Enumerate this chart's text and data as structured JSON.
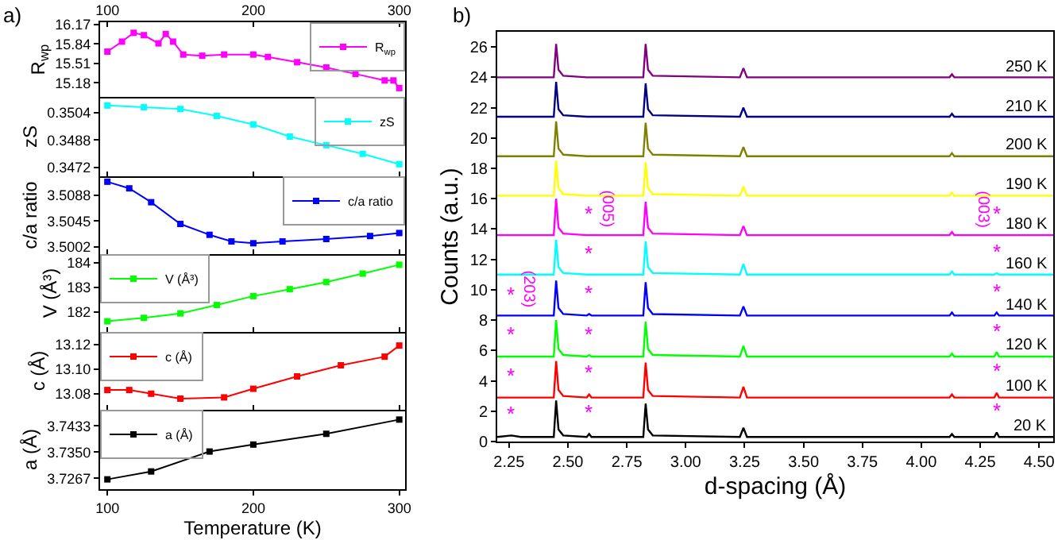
{
  "chart_data": [
    {
      "type": "line",
      "annotations": [
        "a)"
      ],
      "ylabel": "R$_{wp}$",
      "x": [
        100,
        110,
        118,
        125,
        135,
        140,
        145,
        152,
        165,
        180,
        200,
        210,
        230,
        250,
        270,
        290,
        296,
        300
      ],
      "series": [
        {
          "name": "R$_{wp}$",
          "color": "#ff00ff",
          "values": [
            15.71,
            15.88,
            16.03,
            15.99,
            15.85,
            16.01,
            15.88,
            15.66,
            15.64,
            15.66,
            15.66,
            15.62,
            15.53,
            15.44,
            15.33,
            15.22,
            15.22,
            15.09
          ]
        }
      ],
      "xlim": [
        95,
        304
      ],
      "xticks": [
        100,
        200,
        300
      ],
      "ylim": [
        14.94,
        16.21
      ],
      "yticks": [
        15.18,
        15.51,
        15.84,
        16.17
      ],
      "legend": "top right",
      "marker": "square"
    },
    {
      "type": "line",
      "ylabel": "zS",
      "x": [
        100,
        125,
        150,
        175,
        200,
        225,
        250,
        275,
        300
      ],
      "series": [
        {
          "name": "zS",
          "color": "#00ffff",
          "values": [
            0.3508,
            0.3507,
            0.3506,
            0.3502,
            0.3497,
            0.349,
            0.3485,
            0.348,
            0.3474
          ]
        }
      ],
      "xlim": [
        95,
        304
      ],
      "xticks": [
        100,
        200,
        300
      ],
      "ylim": [
        0.3467,
        0.3513
      ],
      "yticks": [
        0.3472,
        0.3488,
        0.3504
      ],
      "legend": "top right",
      "marker": "square",
      "tick_labels": "y"
    },
    {
      "type": "line",
      "ylabel": "c/a ratio",
      "x": [
        100,
        115,
        130,
        150,
        170,
        185,
        200,
        220,
        250,
        280,
        300
      ],
      "series": [
        {
          "name": "c/a ratio",
          "color": "#0000ff",
          "values": [
            3.511,
            3.5099,
            3.5076,
            3.504,
            3.5022,
            3.5011,
            3.5008,
            3.5011,
            3.5015,
            3.502,
            3.5025
          ]
        }
      ],
      "xlim": [
        95,
        304
      ],
      "xticks": [
        100,
        200,
        300
      ],
      "ylim": [
        3.499,
        3.5119
      ],
      "yticks": [
        3.5002,
        3.5045,
        3.5088
      ],
      "legend": "top right",
      "marker": "square",
      "tick_labels": "y"
    },
    {
      "type": "line",
      "ylabel": "V (Å³)",
      "x": [
        100,
        125,
        150,
        175,
        200,
        225,
        250,
        275,
        300
      ],
      "series": [
        {
          "name": "V (Å³)",
          "color": "#00ff00",
          "values": [
            181.62,
            181.76,
            181.94,
            182.28,
            182.64,
            182.92,
            183.21,
            183.55,
            183.91
          ]
        }
      ],
      "xlim": [
        95,
        304
      ],
      "xticks": [
        100,
        200,
        300
      ],
      "ylim": [
        181.19,
        184.34
      ],
      "yticks": [
        182,
        183,
        184
      ],
      "legend": "top left",
      "marker": "square",
      "tick_labels": "y"
    },
    {
      "type": "line",
      "ylabel": "c (Å)",
      "x": [
        100,
        115,
        130,
        150,
        180,
        200,
        230,
        260,
        290,
        300
      ],
      "series": [
        {
          "name": "c (Å)",
          "color": "#ff0000",
          "values": [
            13.083,
            13.083,
            13.08,
            13.076,
            13.077,
            13.084,
            13.094,
            13.103,
            13.11,
            13.119
          ]
        }
      ],
      "xlim": [
        95,
        304
      ],
      "xticks": [
        100,
        200,
        300
      ],
      "ylim": [
        13.067,
        13.13
      ],
      "yticks": [
        13.08,
        {
          "value": 13.1,
          "label": "13.10"
        },
        13.12
      ],
      "legend": "top left",
      "marker": "square",
      "tick_labels": "y"
    },
    {
      "type": "line",
      "ylabel": "a (Å)",
      "xlabel": "Temperature (K)",
      "x": [
        100,
        130,
        170,
        200,
        250,
        300
      ],
      "series": [
        {
          "name": "a (Å)",
          "color": "#000000",
          "values": [
            3.7264,
            3.7289,
            3.7352,
            3.7374,
            3.7408,
            3.7453
          ]
        }
      ],
      "xlim": [
        95,
        304
      ],
      "xticks": [
        100,
        200,
        300
      ],
      "ylim": [
        3.7233,
        3.7484
      ],
      "yticks": [
        3.7267,
        {
          "value": 3.735,
          "label": "3.7350"
        },
        3.7433
      ],
      "legend": "top left",
      "marker": "square"
    },
    {
      "type": "line",
      "xlabel": "d-spacing (Å)",
      "ylabel": "Counts (a.u.)",
      "legend": false,
      "marker": "none",
      "x": [
        2.2,
        2.26,
        2.3,
        2.44,
        2.45,
        2.46,
        2.48,
        2.58,
        2.59,
        2.6,
        2.82,
        2.83,
        2.84,
        2.86,
        3.23,
        3.245,
        3.26,
        4.12,
        4.13,
        4.14,
        4.31,
        4.32,
        4.33,
        4.56
      ],
      "series": [
        {
          "name": "250 K",
          "color": "#800080",
          "values": [
            24,
            24,
            24,
            24,
            26.2,
            24.5,
            24.1,
            24,
            24,
            24,
            24,
            26.2,
            24.5,
            24.1,
            24,
            24.6,
            24,
            24,
            24.2,
            24,
            24,
            24,
            24,
            24
          ]
        },
        {
          "name": "210 K",
          "color": "#000080",
          "values": [
            21.4,
            21.4,
            21.4,
            21.4,
            23.7,
            21.9,
            21.5,
            21.4,
            21.4,
            21.4,
            21.4,
            23.6,
            21.9,
            21.5,
            21.4,
            22,
            21.4,
            21.4,
            21.6,
            21.4,
            21.4,
            21.4,
            21.4,
            21.4
          ]
        },
        {
          "name": "200 K",
          "color": "#808000",
          "values": [
            18.8,
            18.8,
            18.8,
            18.8,
            21.1,
            19.3,
            18.9,
            18.8,
            18.8,
            18.8,
            18.8,
            21,
            19.3,
            18.9,
            18.8,
            19.4,
            18.8,
            18.8,
            19,
            18.8,
            18.8,
            18.8,
            18.8,
            18.8
          ]
        },
        {
          "name": "190 K",
          "color": "#ffff00",
          "values": [
            16.2,
            16.2,
            16.2,
            16.2,
            18.5,
            16.7,
            16.3,
            16.2,
            16.2,
            16.2,
            16.2,
            18.4,
            16.7,
            16.3,
            16.2,
            16.8,
            16.2,
            16.2,
            16.4,
            16.2,
            16.2,
            16.2,
            16.2,
            16.2
          ]
        },
        {
          "name": "180 K",
          "color": "#ff00ff",
          "values": [
            13.6,
            13.6,
            13.6,
            13.6,
            16,
            14.1,
            13.7,
            13.6,
            13.6,
            13.6,
            13.6,
            15.8,
            14.1,
            13.7,
            13.6,
            14.2,
            13.6,
            13.6,
            13.8,
            13.6,
            13.6,
            13.6,
            13.6,
            13.6
          ]
        },
        {
          "name": "160 K",
          "color": "#00ffff",
          "values": [
            11,
            11,
            11,
            11,
            13.3,
            11.5,
            11.1,
            11,
            11,
            11,
            11,
            13.2,
            11.5,
            11.1,
            11,
            11.7,
            11,
            11,
            11.2,
            11,
            11,
            11.1,
            11,
            11
          ]
        },
        {
          "name": "140 K",
          "color": "#0000ff",
          "values": [
            8.3,
            8.3,
            8.3,
            8.3,
            10.6,
            8.8,
            8.4,
            8.3,
            8.4,
            8.3,
            8.3,
            10.5,
            8.8,
            8.4,
            8.3,
            8.9,
            8.3,
            8.3,
            8.5,
            8.3,
            8.3,
            8.5,
            8.3,
            8.3
          ]
        },
        {
          "name": "120 K",
          "color": "#00ff00",
          "values": [
            5.6,
            5.6,
            5.6,
            5.6,
            8,
            6.1,
            5.7,
            5.6,
            5.7,
            5.6,
            5.6,
            7.9,
            6.1,
            5.7,
            5.6,
            6.3,
            5.6,
            5.6,
            5.8,
            5.6,
            5.6,
            5.9,
            5.6,
            5.6
          ]
        },
        {
          "name": "100 K",
          "color": "#ff0000",
          "values": [
            2.9,
            2.9,
            2.9,
            2.9,
            5.3,
            3.4,
            3,
            2.9,
            3.1,
            2.9,
            2.9,
            5.2,
            3.4,
            3,
            2.9,
            3.6,
            2.9,
            2.9,
            3.1,
            2.9,
            2.9,
            3.2,
            2.9,
            2.9
          ]
        },
        {
          "name": "20 K",
          "color": "#000000",
          "values": [
            0.3,
            0.4,
            0.3,
            0.3,
            2.7,
            0.8,
            0.4,
            0.3,
            0.5,
            0.3,
            0.3,
            2.5,
            0.8,
            0.4,
            0.3,
            0.9,
            0.3,
            0.3,
            0.5,
            0.3,
            0.3,
            0.6,
            0.3,
            0.3
          ]
        }
      ],
      "xlim": [
        2.2,
        4.56
      ],
      "xticks": [
        2.25,
        {
          "value": 2.5,
          "label": "2.50"
        },
        2.75,
        {
          "value": 3,
          "label": "3.00"
        },
        3.25,
        {
          "value": 3.5,
          "label": "3.50"
        },
        3.75,
        {
          "value": 4,
          "label": "4.00"
        },
        4.25,
        {
          "value": 4.5,
          "label": "4.50"
        }
      ],
      "ylim": [
        0,
        27
      ],
      "yticks": [
        0,
        2,
        4,
        6,
        8,
        10,
        12,
        14,
        16,
        18,
        20,
        22,
        24,
        26
      ],
      "annotations": [
        "b)",
        {
          "text": "*",
          "x": 2.26,
          "y": 0.4
        },
        {
          "text": "*",
          "x": 2.59,
          "y": 0.5
        },
        {
          "text": "*",
          "x": 4.32,
          "y": 0.6
        },
        {
          "text": "*",
          "x": 2.26,
          "y": 2.9
        },
        {
          "text": "*",
          "x": 2.59,
          "y": 3.1
        },
        {
          "text": "*",
          "x": 4.32,
          "y": 3.2
        },
        {
          "text": "*",
          "x": 2.26,
          "y": 5.6
        },
        {
          "text": "*",
          "x": 2.59,
          "y": 5.7
        },
        {
          "text": "*",
          "x": 4.32,
          "y": 5.9
        },
        {
          "text": "*",
          "x": 2.26,
          "y": 8.3
        },
        {
          "text": "*",
          "x": 2.59,
          "y": 8.4
        },
        {
          "text": "*",
          "x": 4.32,
          "y": 8.5
        },
        {
          "text": "*",
          "x": 2.59,
          "y": 11
        },
        {
          "text": "*",
          "x": 4.32,
          "y": 11.1
        },
        {
          "text": "*",
          "x": 2.59,
          "y": 13.6
        },
        {
          "text": "*",
          "x": 4.32,
          "y": 13.6
        },
        {
          "text": "(005)",
          "x": 2.59,
          "y": 13.6
        },
        {
          "text": "(003)",
          "x": 4.32,
          "y": 13.6
        },
        {
          "text": "(203)",
          "x": 2.26,
          "y": 8.3
        }
      ]
    }
  ]
}
